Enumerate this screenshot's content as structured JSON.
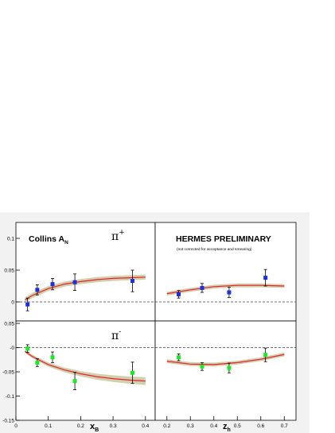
{
  "figure": {
    "left_title": "Collins A",
    "left_title_sub": "N",
    "right_title": "HERMES PRELIMINARY",
    "right_subtitle": "(not corrected for acceptance and smearing)",
    "colors": {
      "frame_bg": "#f2f2f2",
      "panel_bg": "#ffffff",
      "band": "#c8c8a0",
      "curve": "#e8202a",
      "pi_plus_marker": "#1e2fd8",
      "pi_minus_marker": "#22e62a",
      "zero_line": "#444444"
    }
  },
  "chart_data": [
    {
      "type": "scatter",
      "panel": "top-left",
      "label": "π+",
      "label_base": "π",
      "label_sup": "+",
      "xlim": [
        0,
        0.43
      ],
      "ylim": [
        -0.03,
        0.125
      ],
      "yticks": [
        0,
        0.05,
        0.1
      ],
      "ytick_labels": [
        "0",
        "0.05",
        "0.1"
      ],
      "points": [
        {
          "x": 0.036,
          "y": -0.004,
          "err": 0.01
        },
        {
          "x": 0.066,
          "y": 0.019,
          "err": 0.008
        },
        {
          "x": 0.113,
          "y": 0.028,
          "err": 0.009
        },
        {
          "x": 0.182,
          "y": 0.031,
          "err": 0.013
        },
        {
          "x": 0.36,
          "y": 0.033,
          "err": 0.017
        }
      ],
      "curve": [
        [
          0.028,
          0.003
        ],
        [
          0.05,
          0.01
        ],
        [
          0.1,
          0.021
        ],
        [
          0.15,
          0.028
        ],
        [
          0.2,
          0.032
        ],
        [
          0.25,
          0.035
        ],
        [
          0.3,
          0.037
        ],
        [
          0.35,
          0.038
        ],
        [
          0.4,
          0.039
        ]
      ],
      "band_halfwidth": 0.004
    },
    {
      "type": "scatter",
      "panel": "top-right",
      "xlim": [
        0.15,
        0.75
      ],
      "ylim": [
        -0.03,
        0.125
      ],
      "points": [
        {
          "x": 0.25,
          "y": 0.012,
          "err": 0.006
        },
        {
          "x": 0.35,
          "y": 0.022,
          "err": 0.007
        },
        {
          "x": 0.465,
          "y": 0.015,
          "err": 0.008
        },
        {
          "x": 0.62,
          "y": 0.038,
          "err": 0.013
        }
      ],
      "curve": [
        [
          0.2,
          0.013
        ],
        [
          0.3,
          0.019
        ],
        [
          0.4,
          0.024
        ],
        [
          0.5,
          0.026
        ],
        [
          0.6,
          0.026
        ],
        [
          0.7,
          0.025
        ]
      ],
      "band_halfwidth": 0.003
    },
    {
      "type": "scatter",
      "panel": "bottom-left",
      "label": "π-",
      "label_base": "π",
      "label_sup": "-",
      "xlim": [
        0,
        0.43
      ],
      "ylim": [
        -0.15,
        0.055
      ],
      "xlabel": "x",
      "xlabel_sub": "B",
      "xticks": [
        0,
        0.1,
        0.2,
        0.3,
        0.4
      ],
      "xtick_labels": [
        "0",
        "0.1",
        "0.2",
        "0.3",
        "0.4"
      ],
      "yticks": [
        -0.15,
        -0.1,
        -0.05,
        0,
        0.05
      ],
      "ytick_labels": [
        "-0.15",
        "-0.1",
        "-0.05",
        "-0",
        "0.05"
      ],
      "points": [
        {
          "x": 0.036,
          "y": -0.002,
          "err": 0.008
        },
        {
          "x": 0.066,
          "y": -0.031,
          "err": 0.008
        },
        {
          "x": 0.113,
          "y": -0.02,
          "err": 0.011
        },
        {
          "x": 0.182,
          "y": -0.069,
          "err": 0.018
        },
        {
          "x": 0.36,
          "y": -0.052,
          "err": 0.022
        }
      ],
      "curve": [
        [
          0.028,
          -0.008
        ],
        [
          0.05,
          -0.018
        ],
        [
          0.1,
          -0.035
        ],
        [
          0.15,
          -0.046
        ],
        [
          0.2,
          -0.054
        ],
        [
          0.25,
          -0.06
        ],
        [
          0.3,
          -0.064
        ],
        [
          0.35,
          -0.067
        ],
        [
          0.4,
          -0.069
        ]
      ],
      "band_halfwidth_range": [
        0.003,
        0.008
      ]
    },
    {
      "type": "scatter",
      "panel": "bottom-right",
      "xlim": [
        0.15,
        0.75
      ],
      "ylim": [
        -0.15,
        0.055
      ],
      "xlabel": "z",
      "xlabel_sub": "h",
      "xticks": [
        0.2,
        0.3,
        0.4,
        0.5,
        0.6,
        0.7
      ],
      "xtick_labels": [
        "0.2",
        "0.3",
        "0.4",
        "0.5",
        "0.6",
        "0.7"
      ],
      "points": [
        {
          "x": 0.25,
          "y": -0.02,
          "err": 0.007
        },
        {
          "x": 0.35,
          "y": -0.039,
          "err": 0.008
        },
        {
          "x": 0.465,
          "y": -0.042,
          "err": 0.01
        },
        {
          "x": 0.62,
          "y": -0.015,
          "err": 0.014
        }
      ],
      "curve": [
        [
          0.2,
          -0.028
        ],
        [
          0.3,
          -0.034
        ],
        [
          0.4,
          -0.035
        ],
        [
          0.5,
          -0.031
        ],
        [
          0.6,
          -0.024
        ],
        [
          0.7,
          -0.014
        ]
      ],
      "band_halfwidth": 0.004
    }
  ]
}
